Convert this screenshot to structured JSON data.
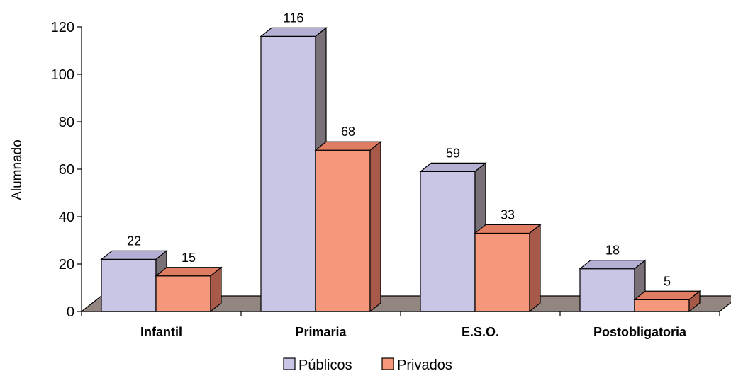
{
  "chart_data": {
    "type": "bar",
    "categories": [
      "Infantil",
      "Primaria",
      "E.S.O.",
      "Postobligatoria"
    ],
    "series": [
      {
        "name": "Públicos",
        "values": [
          22,
          116,
          59,
          18
        ],
        "color": "#c8c6e4",
        "side_color": "#7a7078",
        "top_color": "#b4b0d4"
      },
      {
        "name": "Privados",
        "values": [
          15,
          68,
          33,
          5
        ],
        "color": "#f4977a",
        "side_color": "#a85a4a",
        "top_color": "#e07c62"
      }
    ],
    "data_labels": [
      [
        "22",
        "116",
        "59",
        "18"
      ],
      [
        "15",
        "68",
        "33",
        "5"
      ]
    ],
    "title": "",
    "xlabel": "",
    "ylabel": "Alumnado",
    "ylim": [
      0,
      120
    ],
    "yticks": [
      0,
      20,
      40,
      60,
      80,
      100,
      120
    ],
    "grid": false,
    "floor_color": "#938680",
    "legend_position": "bottom"
  }
}
